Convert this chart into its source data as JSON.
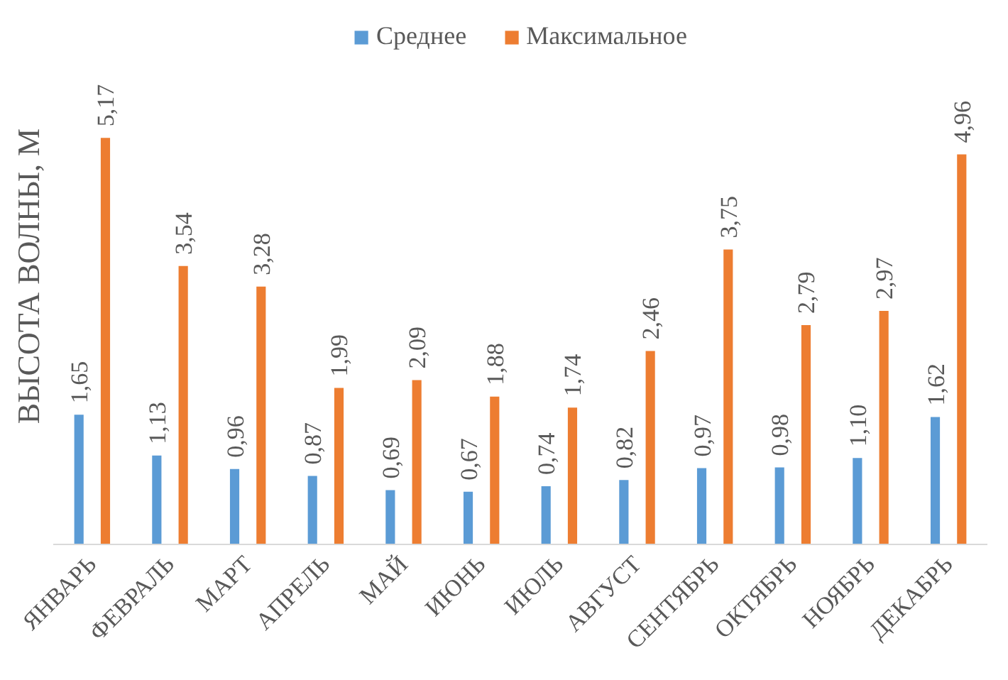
{
  "chart_data": {
    "type": "bar",
    "ylabel": "ВЫСОТА ВОЛНЫ, М",
    "categories": [
      "ЯНВАРЬ",
      "ФЕВРАЛЬ",
      "МАРТ",
      "АПРЕЛЬ",
      "МАЙ",
      "ИЮНЬ",
      "ИЮЛЬ",
      "АВГУСТ",
      "СЕНТЯБРЬ",
      "ОКТЯБРЬ",
      "НОЯБРЬ",
      "ДЕКАБРЬ"
    ],
    "series": [
      {
        "name": "Среднее",
        "color": "#5b9bd5",
        "values": [
          1.65,
          1.13,
          0.96,
          0.87,
          0.69,
          0.67,
          0.74,
          0.82,
          0.97,
          0.98,
          1.1,
          1.62
        ],
        "value_labels": [
          "1,65",
          "1,13",
          "0,96",
          "0,87",
          "0,69",
          "0,67",
          "0,74",
          "0,82",
          "0,97",
          "0,98",
          "1,10",
          "1,62"
        ]
      },
      {
        "name": "Максимальное",
        "color": "#ed7d31",
        "values": [
          5.17,
          3.54,
          3.28,
          1.99,
          2.09,
          1.88,
          1.74,
          2.46,
          3.75,
          2.79,
          2.97,
          4.96
        ],
        "value_labels": [
          "5,17",
          "3,54",
          "3,28",
          "1,99",
          "2,09",
          "1,88",
          "1,74",
          "2,46",
          "3,75",
          "2,79",
          "2,97",
          "4,96"
        ]
      }
    ],
    "legend": "top"
  }
}
